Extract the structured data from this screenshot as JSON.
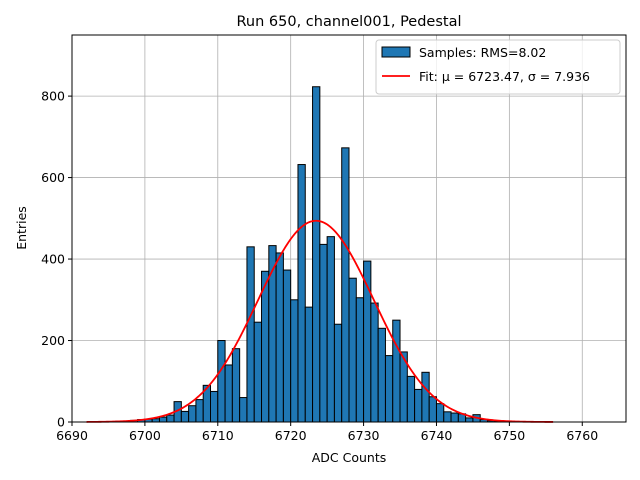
{
  "chart_data": {
    "type": "bar",
    "title": "Run 650, channel001, Pedestal",
    "xlabel": "ADC Counts",
    "ylabel": "Entries",
    "xlim": [
      6690,
      6766
    ],
    "ylim": [
      0,
      950
    ],
    "xticks": [
      6690,
      6700,
      6710,
      6720,
      6730,
      6740,
      6750,
      6760
    ],
    "yticks": [
      0,
      200,
      400,
      600,
      800
    ],
    "grid": true,
    "legend_position": "top-right",
    "bin_width": 1,
    "series": [
      {
        "name": "Samples: RMS=8.02",
        "kind": "histogram",
        "color": "#1f77b4",
        "edge_color": "#000000",
        "bins": [
          {
            "x": 6696,
            "y": 2
          },
          {
            "x": 6697,
            "y": 2
          },
          {
            "x": 6698,
            "y": 4
          },
          {
            "x": 6699,
            "y": 6
          },
          {
            "x": 6700,
            "y": 7
          },
          {
            "x": 6701,
            "y": 8
          },
          {
            "x": 6702,
            "y": 12
          },
          {
            "x": 6703,
            "y": 17
          },
          {
            "x": 6704,
            "y": 50
          },
          {
            "x": 6705,
            "y": 26
          },
          {
            "x": 6706,
            "y": 40
          },
          {
            "x": 6707,
            "y": 55
          },
          {
            "x": 6708,
            "y": 90
          },
          {
            "x": 6709,
            "y": 75
          },
          {
            "x": 6710,
            "y": 200
          },
          {
            "x": 6711,
            "y": 140
          },
          {
            "x": 6712,
            "y": 180
          },
          {
            "x": 6713,
            "y": 60
          },
          {
            "x": 6714,
            "y": 430
          },
          {
            "x": 6715,
            "y": 245
          },
          {
            "x": 6716,
            "y": 370
          },
          {
            "x": 6717,
            "y": 433
          },
          {
            "x": 6718,
            "y": 415
          },
          {
            "x": 6719,
            "y": 373
          },
          {
            "x": 6720,
            "y": 300
          },
          {
            "x": 6721,
            "y": 632
          },
          {
            "x": 6722,
            "y": 282
          },
          {
            "x": 6723,
            "y": 823
          },
          {
            "x": 6724,
            "y": 436
          },
          {
            "x": 6725,
            "y": 455
          },
          {
            "x": 6726,
            "y": 240
          },
          {
            "x": 6727,
            "y": 673
          },
          {
            "x": 6728,
            "y": 353
          },
          {
            "x": 6729,
            "y": 305
          },
          {
            "x": 6730,
            "y": 395
          },
          {
            "x": 6731,
            "y": 292
          },
          {
            "x": 6732,
            "y": 230
          },
          {
            "x": 6733,
            "y": 163
          },
          {
            "x": 6734,
            "y": 250
          },
          {
            "x": 6735,
            "y": 172
          },
          {
            "x": 6736,
            "y": 112
          },
          {
            "x": 6737,
            "y": 80
          },
          {
            "x": 6738,
            "y": 122
          },
          {
            "x": 6739,
            "y": 62
          },
          {
            "x": 6740,
            "y": 45
          },
          {
            "x": 6741,
            "y": 25
          },
          {
            "x": 6742,
            "y": 22
          },
          {
            "x": 6743,
            "y": 20
          },
          {
            "x": 6744,
            "y": 10
          },
          {
            "x": 6745,
            "y": 18
          },
          {
            "x": 6746,
            "y": 6
          },
          {
            "x": 6747,
            "y": 3
          },
          {
            "x": 6748,
            "y": 2
          },
          {
            "x": 6749,
            "y": 1
          }
        ]
      },
      {
        "name": "Fit: μ = 6723.47, σ = 7.936",
        "kind": "gaussian-fit",
        "color": "#ff0000",
        "mu": 6723.47,
        "sigma": 7.936,
        "amplitude": 494,
        "x_range": [
          6692,
          6756
        ]
      }
    ]
  }
}
